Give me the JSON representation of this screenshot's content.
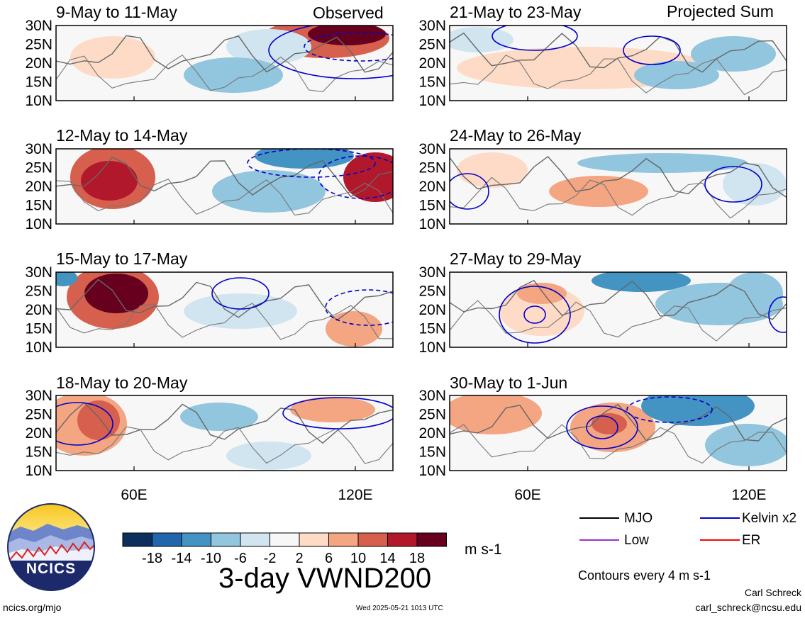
{
  "panels": {
    "left_header": "Observed",
    "right_header": "Projected Sum",
    "left": [
      {
        "date_range": "9-May to 11-May"
      },
      {
        "date_range": "12-May to 14-May"
      },
      {
        "date_range": "15-May to 17-May"
      },
      {
        "date_range": "18-May to 20-May"
      }
    ],
    "right": [
      {
        "date_range": "21-May to 23-May"
      },
      {
        "date_range": "24-May to 26-May"
      },
      {
        "date_range": "27-May to 29-May"
      },
      {
        "date_range": "30-May to 1-Jun"
      }
    ],
    "lat_labels": [
      "30N",
      "25N",
      "20N",
      "15N",
      "10N"
    ],
    "lon_labels": [
      "60E",
      "120E"
    ]
  },
  "colorbar": {
    "tick_labels": [
      "-18",
      "-14",
      "-10",
      "-6",
      "-2",
      "2",
      "6",
      "10",
      "14",
      "18"
    ],
    "colors": [
      "#0d2f5e",
      "#2166ac",
      "#4393c3",
      "#92c5de",
      "#d1e5f0",
      "#f7f7f7",
      "#fddbc7",
      "#f4a582",
      "#d6604d",
      "#b2182b",
      "#67001f"
    ],
    "units": "m s-1"
  },
  "title": "3-day VWND200",
  "legend": {
    "items": [
      {
        "label": "MJO",
        "color": "#000000"
      },
      {
        "label": "Kelvin x2",
        "color": "#0000cc"
      },
      {
        "label": "Low",
        "color": "#9a32cd"
      },
      {
        "label": "ER",
        "color": "#ff0000"
      }
    ],
    "note": "Contours every 4 m s-1"
  },
  "logo": {
    "text": "NCICS"
  },
  "footer": {
    "url": "ncics.org/mjo",
    "timestamp": "Wed 2025-05-21 1013 UTC",
    "author": "Carl Schreck",
    "email": "carl_schreck@ncsu.edu"
  }
}
